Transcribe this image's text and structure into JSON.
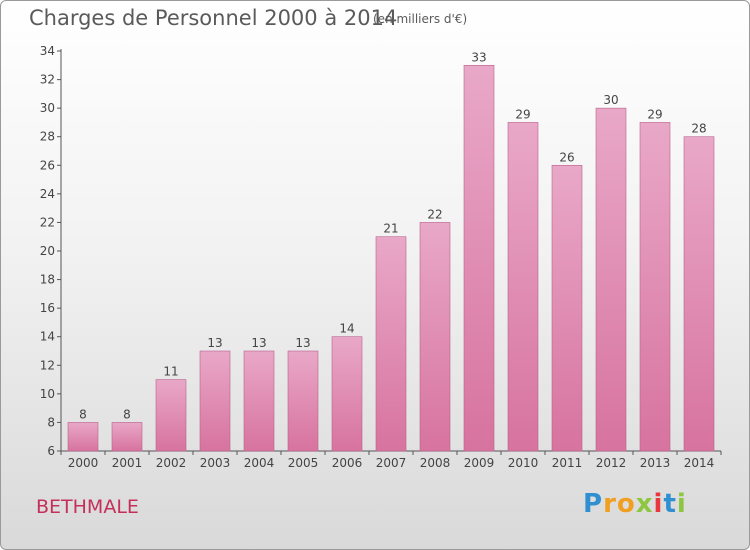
{
  "header": {
    "title": "Charges de Personnel 2000 à 2014",
    "subtitle": "(en milliers d'€)"
  },
  "commune": "BETHMALE",
  "brand": {
    "letters": [
      "P",
      "r",
      "o",
      "x",
      "i",
      "t",
      "i"
    ],
    "colors": [
      "#2f8fd0",
      "#f0a020",
      "#f0a020",
      "#8dc63f",
      "#e8383d",
      "#2f8fd0",
      "#8dc63f"
    ]
  },
  "chart_data": {
    "type": "bar",
    "categories": [
      "2000",
      "2001",
      "2002",
      "2003",
      "2004",
      "2005",
      "2006",
      "2007",
      "2008",
      "2009",
      "2010",
      "2011",
      "2012",
      "2013",
      "2014"
    ],
    "values": [
      8,
      8,
      11,
      13,
      13,
      13,
      14,
      21,
      22,
      33,
      29,
      26,
      30,
      29,
      28
    ],
    "ylim": [
      6,
      34
    ],
    "yticks": [
      6,
      8,
      10,
      12,
      14,
      16,
      18,
      20,
      22,
      24,
      26,
      28,
      30,
      32,
      34
    ],
    "bar_color": "#d7739f",
    "grid": false,
    "data_labels": true
  }
}
